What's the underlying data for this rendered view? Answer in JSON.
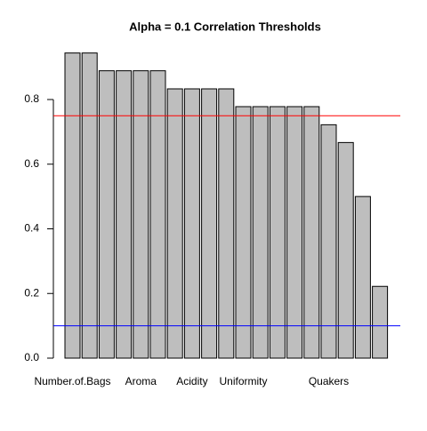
{
  "chart_data": {
    "type": "bar",
    "title": "Alpha = 0.1 Correlation Thresholds",
    "categories": [
      "Number.of.Bags",
      null,
      null,
      null,
      "Aroma",
      null,
      null,
      "Acidity",
      null,
      null,
      "Uniformity",
      null,
      null,
      null,
      null,
      "Quakers",
      null,
      null,
      null
    ],
    "values": [
      0.944,
      0.944,
      0.889,
      0.889,
      0.889,
      0.889,
      0.833,
      0.833,
      0.833,
      0.833,
      0.778,
      0.778,
      0.778,
      0.778,
      0.778,
      0.722,
      0.667,
      0.5,
      0.222
    ],
    "color": "#bebebe",
    "ylim": [
      0,
      1
    ],
    "yticks": [
      {
        "value": 0,
        "label": "0.0"
      },
      0.2,
      0.4,
      0.6,
      0.8
    ],
    "reference_lines": [
      {
        "value": 0.75,
        "color": "#ff0000"
      },
      {
        "value": 0.1,
        "color": "#0000ff"
      }
    ]
  }
}
